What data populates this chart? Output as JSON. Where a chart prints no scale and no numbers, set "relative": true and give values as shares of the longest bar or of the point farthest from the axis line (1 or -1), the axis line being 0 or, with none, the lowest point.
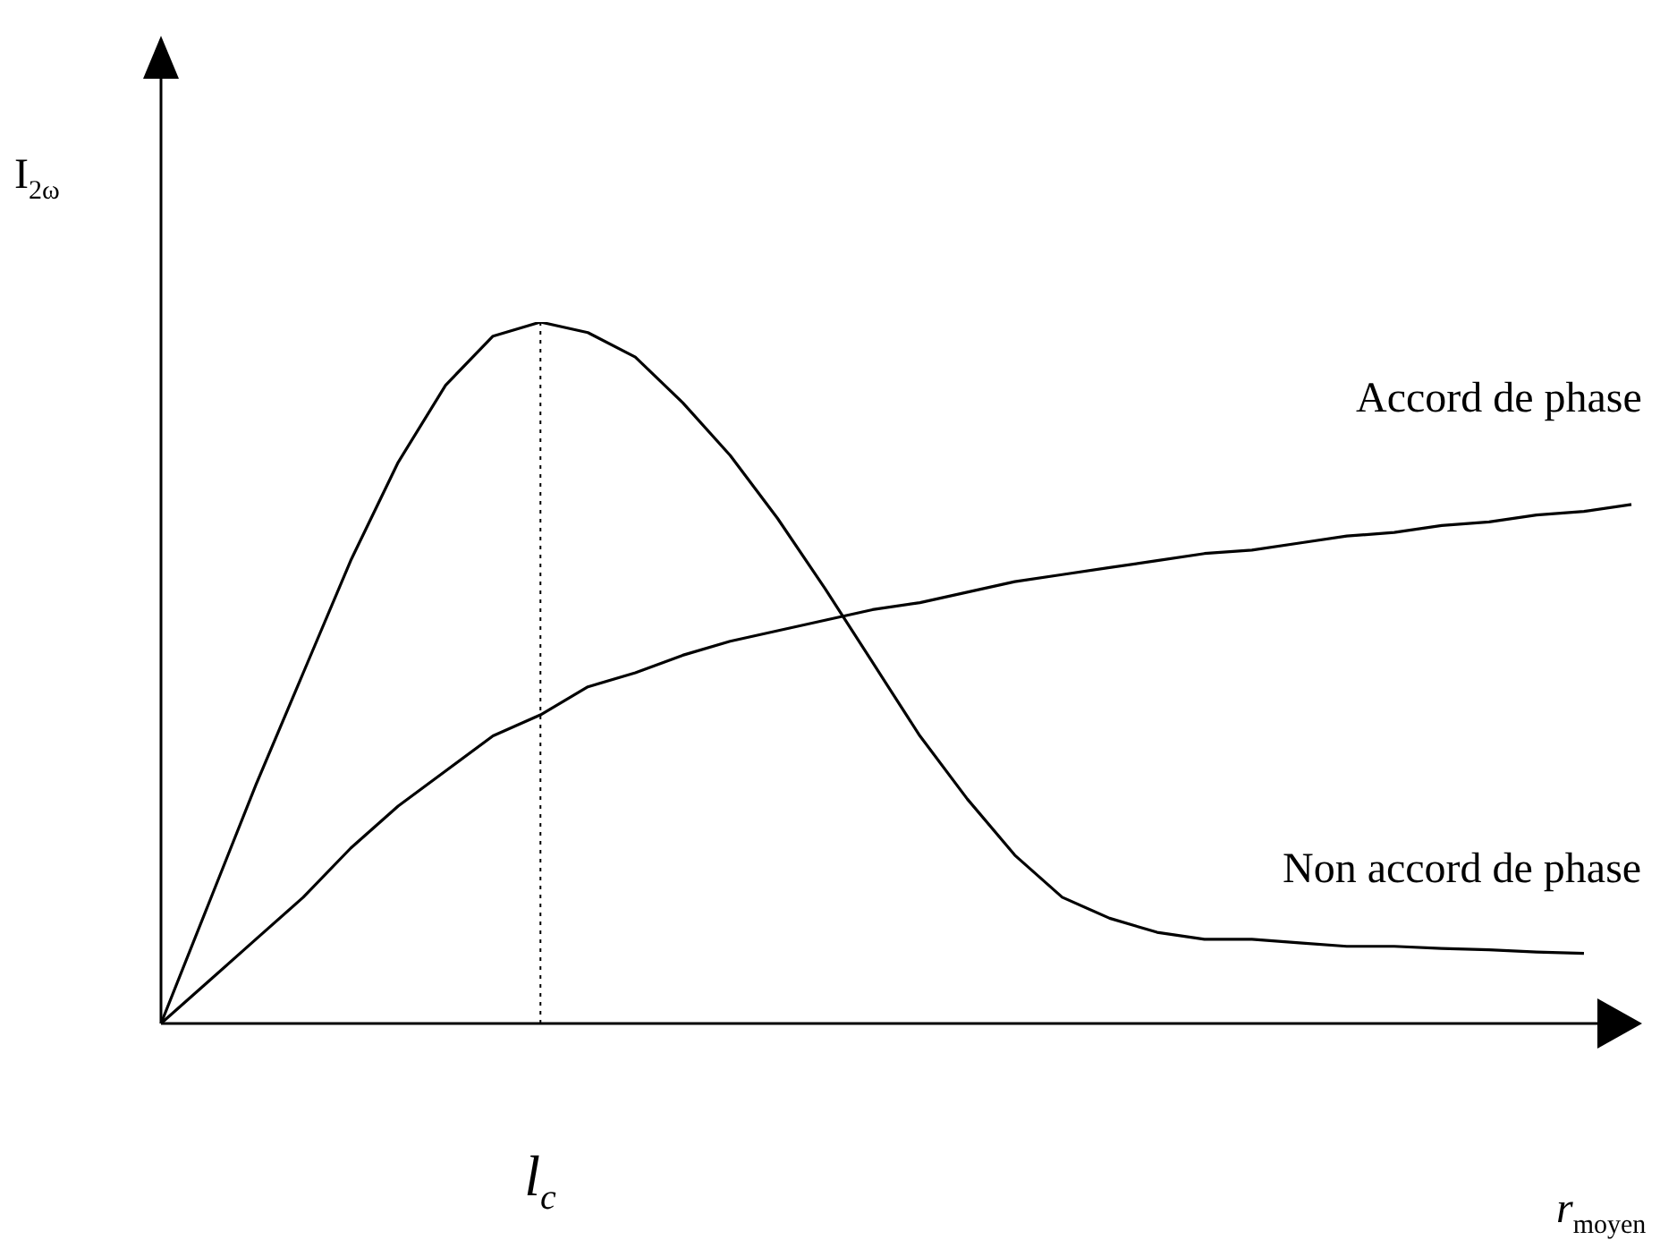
{
  "chart_data": {
    "type": "line",
    "relative": true,
    "xlabel": "r$_{moyen}$",
    "ylabel": "I$_{2ω}$",
    "categories": [
      null,
      null,
      null,
      null,
      null,
      null,
      null,
      null,
      null,
      null,
      null,
      null,
      null,
      null,
      null,
      null,
      null,
      null,
      null,
      null,
      null,
      null,
      null,
      null,
      null,
      null,
      null,
      null,
      null,
      null,
      null,
      null
    ],
    "series": [
      {
        "name": "Accord de phase",
        "color": "#000000",
        "values": [
          0,
          0.06,
          0.12,
          0.18,
          0.25,
          0.31,
          0.36,
          0.41,
          0.44,
          0.48,
          0.5,
          0.525,
          0.545,
          0.56,
          0.575,
          0.59,
          0.6,
          0.615,
          0.63,
          0.64,
          0.65,
          0.66,
          0.67,
          0.675,
          0.685,
          0.695,
          0.7,
          0.71,
          0.715,
          0.725,
          0.73,
          0.74
        ]
      },
      {
        "name": "Non accord de phase",
        "color": "#000000",
        "values": [
          0,
          0.17,
          0.34,
          0.5,
          0.66,
          0.8,
          0.91,
          0.98,
          1,
          0.985,
          0.95,
          0.885,
          0.81,
          0.72,
          0.62,
          0.515,
          0.41,
          0.32,
          0.24,
          0.18,
          0.15,
          0.13,
          0.12,
          0.12,
          0.115,
          0.11,
          0.11,
          0.107,
          0.105,
          0.102,
          0.1,
          null
        ]
      }
    ],
    "annotations": [
      "l$_{c}$"
    ],
    "legend": false,
    "marker": "none",
    "line_style": "solid"
  }
}
